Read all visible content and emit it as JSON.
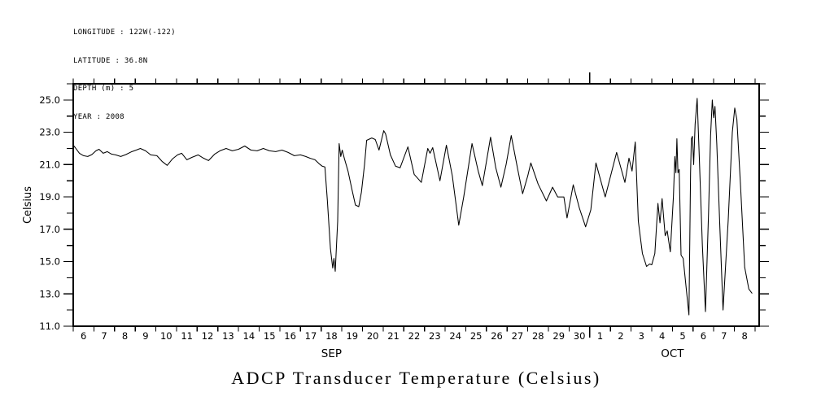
{
  "header": {
    "lines": [
      "LONGITUDE : 122W(-122)",
      "LATITUDE : 36.8N",
      "DEPTH (m) : 5",
      "YEAR : 2008"
    ]
  },
  "chart_data": {
    "type": "line",
    "title": "ADCP Transducer Temperature (Celsius)",
    "ylabel": "Celsius",
    "xlabel": "",
    "legend": "none",
    "grid": "off",
    "background_color": "#ffffff",
    "line_color": "#000000",
    "axis_color": "#000000",
    "ylim": [
      11.0,
      26.0
    ],
    "yticks_major": [
      {
        "value": 11,
        "label": "11.0"
      },
      {
        "value": 13,
        "label": "13.0"
      },
      {
        "value": 15,
        "label": "15.0"
      },
      {
        "value": 17,
        "label": "17.0"
      },
      {
        "value": 19,
        "label": "19.0"
      },
      {
        "value": 21,
        "label": "21.0"
      },
      {
        "value": 23,
        "label": "23.0"
      },
      {
        "value": 25,
        "label": "25.0"
      }
    ],
    "ytick_minor": {
      "from": 11,
      "to": 26,
      "step": 1
    },
    "xlim_days": [
      0,
      33.2
    ],
    "x_day_tick_step": 1,
    "months": [
      {
        "label": "SEP",
        "days": [
          6,
          7,
          8,
          9,
          10,
          11,
          12,
          13,
          14,
          15,
          16,
          17,
          18,
          19,
          20,
          21,
          22,
          23,
          24,
          25,
          26,
          27,
          28,
          29,
          30
        ]
      },
      {
        "label": "OCT",
        "days": [
          1,
          2,
          3,
          4,
          5,
          6,
          7,
          8
        ]
      }
    ],
    "series": [
      {
        "name": "ADCP transducer temperature",
        "unit": "Celsius",
        "x_unit": "days since Sep 6 2008 00:00",
        "points": [
          [
            0,
            22.2
          ],
          [
            0.1,
            22.05
          ],
          [
            0.3,
            21.7
          ],
          [
            0.5,
            21.55
          ],
          [
            0.7,
            21.5
          ],
          [
            0.9,
            21.62
          ],
          [
            1.1,
            21.85
          ],
          [
            1.25,
            21.95
          ],
          [
            1.45,
            21.7
          ],
          [
            1.65,
            21.8
          ],
          [
            1.85,
            21.65
          ],
          [
            2.05,
            21.6
          ],
          [
            2.3,
            21.5
          ],
          [
            2.55,
            21.62
          ],
          [
            2.8,
            21.78
          ],
          [
            3.05,
            21.9
          ],
          [
            3.25,
            22.0
          ],
          [
            3.5,
            21.85
          ],
          [
            3.75,
            21.6
          ],
          [
            4.05,
            21.55
          ],
          [
            4.3,
            21.2
          ],
          [
            4.55,
            20.95
          ],
          [
            4.8,
            21.35
          ],
          [
            5.05,
            21.6
          ],
          [
            5.25,
            21.7
          ],
          [
            5.5,
            21.3
          ],
          [
            5.75,
            21.45
          ],
          [
            6.05,
            21.6
          ],
          [
            6.3,
            21.4
          ],
          [
            6.55,
            21.25
          ],
          [
            6.85,
            21.65
          ],
          [
            7.1,
            21.85
          ],
          [
            7.4,
            22.0
          ],
          [
            7.7,
            21.85
          ],
          [
            8.0,
            21.95
          ],
          [
            8.3,
            22.15
          ],
          [
            8.6,
            21.9
          ],
          [
            8.9,
            21.85
          ],
          [
            9.2,
            22.0
          ],
          [
            9.5,
            21.85
          ],
          [
            9.8,
            21.8
          ],
          [
            10.1,
            21.9
          ],
          [
            10.4,
            21.75
          ],
          [
            10.7,
            21.55
          ],
          [
            11.0,
            21.6
          ],
          [
            11.25,
            21.5
          ],
          [
            11.45,
            21.4
          ],
          [
            11.7,
            21.3
          ],
          [
            11.9,
            21.05
          ],
          [
            12.05,
            20.9
          ],
          [
            12.18,
            20.85
          ],
          [
            12.3,
            18.8
          ],
          [
            12.45,
            15.8
          ],
          [
            12.56,
            14.6
          ],
          [
            12.62,
            15.2
          ],
          [
            12.68,
            14.4
          ],
          [
            12.8,
            17.5
          ],
          [
            12.87,
            22.3
          ],
          [
            12.95,
            21.5
          ],
          [
            13.02,
            21.9
          ],
          [
            13.12,
            21.4
          ],
          [
            13.3,
            20.6
          ],
          [
            13.5,
            19.4
          ],
          [
            13.66,
            18.5
          ],
          [
            13.82,
            18.4
          ],
          [
            13.95,
            19.3
          ],
          [
            14.1,
            21.0
          ],
          [
            14.2,
            22.5
          ],
          [
            14.45,
            22.65
          ],
          [
            14.62,
            22.55
          ],
          [
            14.8,
            21.9
          ],
          [
            15.03,
            23.1
          ],
          [
            15.12,
            22.9
          ],
          [
            15.35,
            21.6
          ],
          [
            15.6,
            20.9
          ],
          [
            15.82,
            20.8
          ],
          [
            16.2,
            22.1
          ],
          [
            16.5,
            20.4
          ],
          [
            16.85,
            19.9
          ],
          [
            17.16,
            22.0
          ],
          [
            17.27,
            21.7
          ],
          [
            17.4,
            22.05
          ],
          [
            17.75,
            20.0
          ],
          [
            18.06,
            22.2
          ],
          [
            18.35,
            20.3
          ],
          [
            18.66,
            17.25
          ],
          [
            18.9,
            19.0
          ],
          [
            19.3,
            22.3
          ],
          [
            19.6,
            20.6
          ],
          [
            19.8,
            19.7
          ],
          [
            20.2,
            22.7
          ],
          [
            20.45,
            20.8
          ],
          [
            20.7,
            19.6
          ],
          [
            20.95,
            21.0
          ],
          [
            21.2,
            22.8
          ],
          [
            21.5,
            20.8
          ],
          [
            21.75,
            19.2
          ],
          [
            22.0,
            20.3
          ],
          [
            22.15,
            21.1
          ],
          [
            22.5,
            19.8
          ],
          [
            22.9,
            18.75
          ],
          [
            23.2,
            19.6
          ],
          [
            23.45,
            19.0
          ],
          [
            23.75,
            19.0
          ],
          [
            23.9,
            17.7
          ],
          [
            24.2,
            19.75
          ],
          [
            24.5,
            18.3
          ],
          [
            24.8,
            17.15
          ],
          [
            25.05,
            18.2
          ],
          [
            25.3,
            21.1
          ],
          [
            25.75,
            19.0
          ],
          [
            26.3,
            21.75
          ],
          [
            26.7,
            19.9
          ],
          [
            26.9,
            21.4
          ],
          [
            27.05,
            20.6
          ],
          [
            27.2,
            22.4
          ],
          [
            27.35,
            17.5
          ],
          [
            27.55,
            15.5
          ],
          [
            27.75,
            14.7
          ],
          [
            27.9,
            14.85
          ],
          [
            28.0,
            14.8
          ],
          [
            28.15,
            15.5
          ],
          [
            28.3,
            18.6
          ],
          [
            28.4,
            17.4
          ],
          [
            28.5,
            18.9
          ],
          [
            28.65,
            16.6
          ],
          [
            28.75,
            16.9
          ],
          [
            28.9,
            15.6
          ],
          [
            29.05,
            19.0
          ],
          [
            29.12,
            21.5
          ],
          [
            29.17,
            20.5
          ],
          [
            29.22,
            22.6
          ],
          [
            29.27,
            20.5
          ],
          [
            29.33,
            20.7
          ],
          [
            29.42,
            15.4
          ],
          [
            29.52,
            15.2
          ],
          [
            29.8,
            11.7
          ],
          [
            29.88,
            20.5
          ],
          [
            29.92,
            22.6
          ],
          [
            29.97,
            22.75
          ],
          [
            30.03,
            21.0
          ],
          [
            30.1,
            23.5
          ],
          [
            30.2,
            25.1
          ],
          [
            30.3,
            21.5
          ],
          [
            30.45,
            16.0
          ],
          [
            30.6,
            11.9
          ],
          [
            30.75,
            18.0
          ],
          [
            30.85,
            22.8
          ],
          [
            30.93,
            25.0
          ],
          [
            31.0,
            23.9
          ],
          [
            31.06,
            24.6
          ],
          [
            31.15,
            22.3
          ],
          [
            31.3,
            17.0
          ],
          [
            31.45,
            12.0
          ],
          [
            31.7,
            17.5
          ],
          [
            31.9,
            23.0
          ],
          [
            32.02,
            24.5
          ],
          [
            32.12,
            23.8
          ],
          [
            32.3,
            19.7
          ],
          [
            32.5,
            14.65
          ],
          [
            32.7,
            13.3
          ],
          [
            32.85,
            13.05
          ]
        ]
      }
    ]
  }
}
